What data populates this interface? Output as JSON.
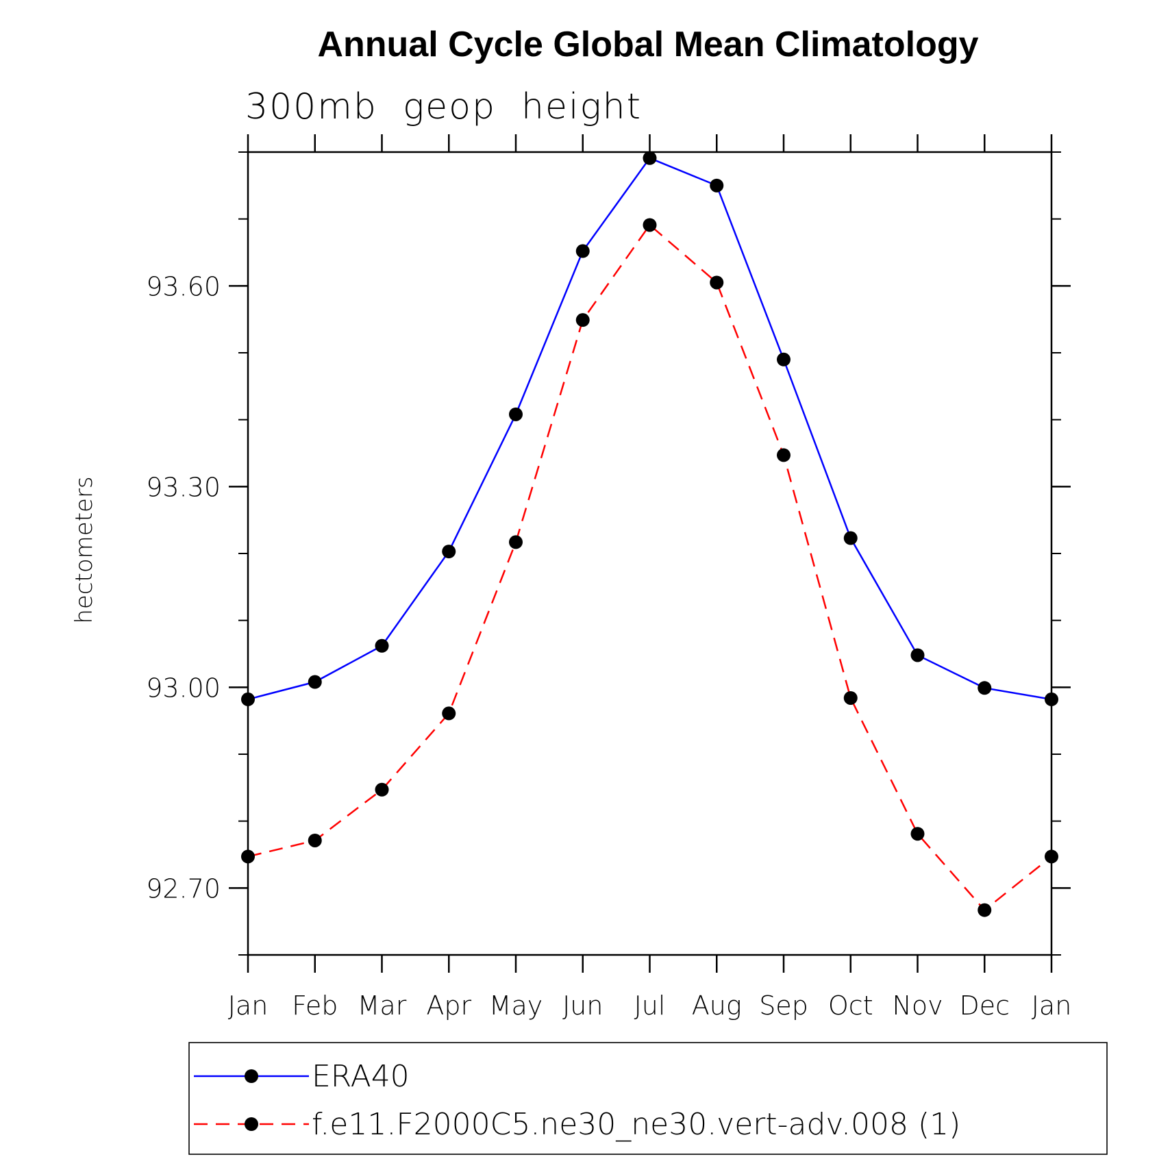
{
  "chart_data": {
    "type": "line",
    "title": "Annual Cycle Global Mean Climatology",
    "subtitle": "300mb  geop  height",
    "ylabel": "hectometers",
    "xlabel": "",
    "categories": [
      "Jan",
      "Feb",
      "Mar",
      "Apr",
      "May",
      "Jun",
      "Jul",
      "Aug",
      "Sep",
      "Oct",
      "Nov",
      "Dec",
      "Jan"
    ],
    "ylim": [
      92.6,
      93.8
    ],
    "yticks_major": [
      92.7,
      93.0,
      93.3,
      93.6
    ],
    "ytick_labels": [
      "92.70",
      "93.00",
      "93.30",
      "93.60"
    ],
    "yticks_minor_step": 0.1,
    "grid": false,
    "legend_placement": "bottom",
    "series": [
      {
        "name": "ERA40",
        "color": "#0000ff",
        "dash": "solid",
        "marker": "filled-circle",
        "values": [
          92.982,
          93.008,
          93.062,
          93.203,
          93.408,
          93.652,
          93.791,
          93.75,
          93.49,
          93.223,
          93.048,
          92.999,
          92.982
        ]
      },
      {
        "name": "f.e11.F2000C5.ne30_ne30.vert-adv.008 (1)",
        "color": "#ff0000",
        "dash": "dashed",
        "marker": "filled-circle",
        "values": [
          92.747,
          92.771,
          92.847,
          92.961,
          93.217,
          93.549,
          93.691,
          93.605,
          93.347,
          92.984,
          92.781,
          92.667,
          92.747
        ]
      }
    ]
  }
}
